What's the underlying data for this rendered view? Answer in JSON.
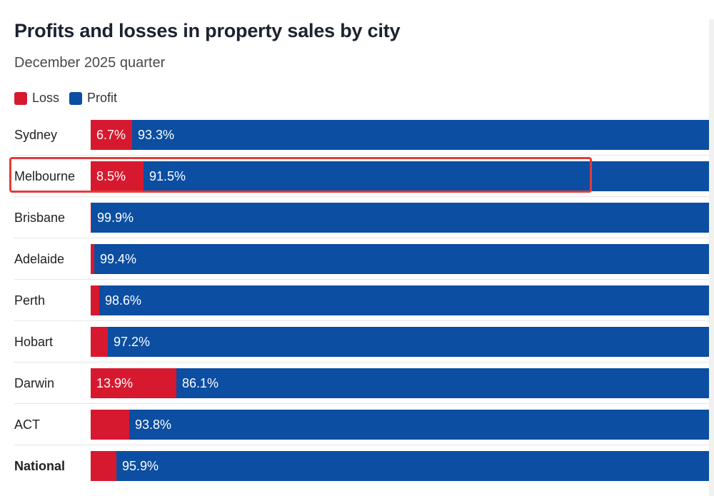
{
  "header": {
    "title": "Profits and losses in property sales by city",
    "subtitle": "December 2025 quarter"
  },
  "colors": {
    "loss": "#d7192f",
    "profit": "#0b4ea2"
  },
  "chart_data": {
    "type": "bar",
    "orientation": "horizontal",
    "stacked": true,
    "normalized_percent": true,
    "title": "Profits and losses in property sales by city",
    "subtitle": "December 2025 quarter",
    "legend": [
      "Loss",
      "Profit"
    ],
    "legend_position": "top-left",
    "categories": [
      "Sydney",
      "Melbourne",
      "Brisbane",
      "Adelaide",
      "Perth",
      "Hobart",
      "Darwin",
      "ACT",
      "National"
    ],
    "series": [
      {
        "name": "Loss",
        "values": [
          6.7,
          8.5,
          0.1,
          0.6,
          1.4,
          2.8,
          13.9,
          6.2,
          4.1
        ]
      },
      {
        "name": "Profit",
        "values": [
          93.3,
          91.5,
          99.9,
          99.4,
          98.6,
          97.2,
          86.1,
          93.8,
          95.9
        ]
      }
    ],
    "data_labels": {
      "Loss": [
        "6.7%",
        "8.5%",
        "",
        "",
        "",
        "",
        "13.9%",
        "",
        ""
      ],
      "Profit": [
        "93.3%",
        "91.5%",
        "99.9%",
        "99.4%",
        "98.6%",
        "97.2%",
        "86.1%",
        "93.8%",
        "95.9%"
      ]
    },
    "bold_categories": [
      "National"
    ],
    "highlighted_category": "Melbourne"
  }
}
